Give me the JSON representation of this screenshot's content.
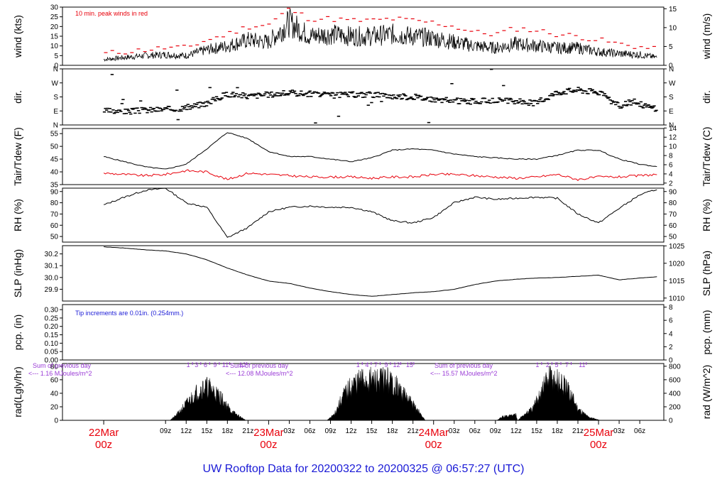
{
  "footer": {
    "title": "UW Rooftop Data for 20200322  to  20200325 @ 06:57:27  (UTC)"
  },
  "colors": {
    "peak": "#e8000b",
    "dew": "#e8000b",
    "note_red": "#e8000b",
    "note_blue": "#1a1ad6",
    "note_purple": "#9a3bd6",
    "day_label": "#e8000b",
    "footer": "#1a1ad6",
    "trace": "#000000"
  },
  "chart_data": [
    {
      "type": "line",
      "id": "wind",
      "ylabel": "wind (kts)",
      "ylabel_right": "wind (m/s)",
      "ylim": [
        0,
        30
      ],
      "yticks": [
        "0",
        "5",
        "10",
        "15",
        "20",
        "25",
        "30"
      ],
      "yticks_right": [
        "0",
        "5",
        "10",
        "15"
      ],
      "annotation": "10 min. peak winds in red",
      "x_hours": [
        0,
        3,
        6,
        9,
        12,
        15,
        18,
        21,
        24,
        27,
        30,
        33,
        36,
        39,
        42,
        45,
        48,
        51,
        54,
        57,
        60,
        63,
        66,
        69,
        72,
        75,
        78,
        80.5
      ],
      "series": [
        {
          "name": "",
          "role": "wind",
          "y": [
            3,
            4,
            5,
            5.5,
            5,
            8,
            10,
            13,
            12,
            22,
            15,
            16,
            15,
            15,
            16,
            15,
            14,
            12,
            10,
            9,
            11,
            10,
            9,
            9,
            7,
            6,
            5.5,
            4
          ]
        },
        {
          "name": "",
          "role": "peak",
          "y": [
            6,
            7,
            8,
            9,
            9,
            13,
            16,
            20,
            21,
            29,
            24,
            24,
            23,
            23,
            24,
            23,
            22,
            20,
            17,
            16,
            19,
            18,
            16,
            15,
            13,
            11,
            9.5,
            8
          ]
        }
      ]
    },
    {
      "type": "scatter",
      "id": "dir",
      "ylabel": "dir.",
      "ylabel_right": "dir.",
      "ylim": [
        0,
        360
      ],
      "yticks": [
        "N",
        "E",
        "S",
        "W",
        "N"
      ],
      "x_hours": [
        0,
        3,
        6,
        9,
        12,
        15,
        18,
        21,
        24,
        27,
        30,
        33,
        36,
        39,
        42,
        45,
        48,
        51,
        54,
        57,
        60,
        63,
        66,
        69,
        72,
        75,
        77,
        80.5
      ],
      "series": [
        {
          "name": "",
          "y": [
            90,
            85,
            95,
            100,
            110,
            140,
            200,
            185,
            195,
            205,
            200,
            190,
            195,
            195,
            185,
            180,
            165,
            155,
            150,
            160,
            150,
            140,
            210,
            225,
            210,
            120,
            150,
            100
          ]
        }
      ]
    },
    {
      "type": "line",
      "id": "temp",
      "ylabel": "Tair/Tdew (F)",
      "ylabel_right": "Tair/Tdew (C)",
      "ylim": [
        35,
        57
      ],
      "yticks": [
        "35",
        "40",
        "45",
        "50",
        "55"
      ],
      "yticks_right": [
        "2",
        "4",
        "6",
        "8",
        "10",
        "12",
        "14"
      ],
      "x_hours": [
        0,
        3,
        6,
        9,
        12,
        15,
        18,
        21,
        24,
        27,
        30,
        33,
        36,
        39,
        42,
        45,
        48,
        51,
        54,
        57,
        60,
        63,
        66,
        69,
        72,
        75,
        78,
        80.5
      ],
      "series": [
        {
          "name": "",
          "role": "air",
          "y": [
            46,
            44,
            42,
            41,
            43,
            49,
            55.5,
            53,
            48,
            46,
            46,
            45,
            44,
            45.5,
            48.5,
            49,
            48.5,
            47,
            46,
            45.5,
            45,
            45,
            46.5,
            48.5,
            48.5,
            45,
            43,
            42
          ]
        },
        {
          "name": "",
          "role": "dew",
          "y": [
            39.5,
            39,
            38.5,
            39,
            40.5,
            40,
            37,
            39.5,
            39,
            38.5,
            38,
            38,
            38,
            37.5,
            38,
            38,
            39,
            39,
            38.5,
            38,
            37.5,
            38,
            39,
            37,
            38,
            38,
            38.5,
            39
          ]
        }
      ]
    },
    {
      "type": "line",
      "id": "rh",
      "ylabel": "RH (%)",
      "ylabel_right": "RH (%)",
      "ylim": [
        45,
        93
      ],
      "yticks": [
        "50",
        "60",
        "70",
        "80",
        "90"
      ],
      "yticks_right": [
        "50",
        "60",
        "70",
        "80",
        "90"
      ],
      "x_hours": [
        0,
        3,
        6,
        9,
        12,
        15,
        18,
        21,
        24,
        27,
        30,
        33,
        36,
        39,
        42,
        45,
        48,
        51,
        54,
        57,
        60,
        63,
        66,
        69,
        72,
        75,
        78,
        80.5
      ],
      "series": [
        {
          "name": "",
          "y": [
            78,
            85,
            91,
            93,
            80,
            76,
            49,
            58,
            72,
            76,
            77,
            76,
            76,
            72,
            64,
            62,
            67,
            80,
            85,
            83,
            84,
            85,
            84,
            70,
            62,
            75,
            87,
            92
          ]
        }
      ]
    },
    {
      "type": "line",
      "id": "slp",
      "ylabel": "SLP (inHg)",
      "ylabel_right": "SLP (hPa)",
      "ylim": [
        29.8,
        30.27
      ],
      "yticks": [
        "29.9",
        "30.0",
        "30.1",
        "30.2"
      ],
      "yticks_right": [
        "1010",
        "1015",
        "1020",
        "1025"
      ],
      "x_hours": [
        0,
        3,
        6,
        9,
        12,
        15,
        18,
        21,
        24,
        27,
        30,
        33,
        36,
        39,
        42,
        45,
        48,
        51,
        54,
        57,
        60,
        63,
        66,
        69,
        72,
        75,
        78,
        80.5
      ],
      "series": [
        {
          "name": "",
          "y": [
            30.26,
            30.25,
            30.235,
            30.225,
            30.2,
            30.15,
            30.08,
            30.02,
            29.97,
            29.95,
            29.91,
            29.88,
            29.855,
            29.84,
            29.855,
            29.87,
            29.88,
            29.9,
            29.94,
            29.97,
            29.985,
            29.995,
            30.0,
            30.01,
            30.02,
            29.98,
            29.995,
            30.005
          ]
        }
      ]
    },
    {
      "type": "line",
      "id": "pcp",
      "ylabel": "pcp. (in)",
      "ylabel_right": "pcp. (mm)",
      "ylim": [
        0,
        0.33
      ],
      "yticks": [
        "0.00",
        "0.05",
        "0.10",
        "0.15",
        "0.20",
        "0.25",
        "0.30"
      ],
      "yticks_right": [
        "0",
        "2",
        "4",
        "6",
        "8"
      ],
      "annotation": "Tip increments are 0.01in. (0.254mm.)",
      "x_hours": [
        0,
        80.5
      ],
      "series": [
        {
          "name": "",
          "y": [
            0,
            0
          ]
        }
      ]
    },
    {
      "type": "area",
      "id": "rad",
      "ylabel": "rad(Lgly/hr)",
      "ylabel_right": "rad (W/m^2)",
      "ylim": [
        0,
        84
      ],
      "yticks": [
        "0",
        "20",
        "40",
        "60",
        "80"
      ],
      "yticks_right": [
        "0",
        "200",
        "400",
        "600",
        "800"
      ],
      "annotations": [
        {
          "line1": "Sum of previous day",
          "line2": "<--- 1.16 MJoules/m^2"
        },
        {
          "line1": "Sum of previous day",
          "line2": "<--- 12.08 MJoules/m^2"
        },
        {
          "line1": "Sum of previous day",
          "line2": "<--- 15.57 MJoules/m^2"
        }
      ],
      "hour_marks": [
        {
          "x": 12.3,
          "label": "1"
        },
        {
          "x": 13.5,
          "label": "3"
        },
        {
          "x": 14.8,
          "label": "6"
        },
        {
          "x": 16.2,
          "label": "9"
        },
        {
          "x": 17.7,
          "label": "11"
        },
        {
          "x": 20.2,
          "label": "12"
        },
        {
          "x": 37.0,
          "label": "1"
        },
        {
          "x": 38.3,
          "label": "4"
        },
        {
          "x": 39.6,
          "label": "7"
        },
        {
          "x": 41.1,
          "label": "9"
        },
        {
          "x": 42.6,
          "label": "12"
        },
        {
          "x": 44.5,
          "label": "15"
        },
        {
          "x": 63.1,
          "label": "1"
        },
        {
          "x": 64.6,
          "label": "2"
        },
        {
          "x": 65.9,
          "label": "5"
        },
        {
          "x": 67.4,
          "label": "7"
        },
        {
          "x": 69.6,
          "label": "11"
        }
      ],
      "x_hours": [
        9.6,
        10.5,
        12,
        13.5,
        14.5,
        15.5,
        17,
        18.5,
        20,
        20.7,
        32.5,
        33.5,
        35,
        36.5,
        38,
        39.5,
        41,
        42.5,
        44,
        45.5,
        46.8,
        57.2,
        58,
        60,
        60.2,
        61,
        62.5,
        64,
        65,
        66,
        67,
        68,
        69,
        70.5,
        72.3
      ],
      "series": [
        {
          "name": "",
          "y": [
            0,
            8,
            28,
            48,
            58,
            56,
            40,
            16,
            5,
            0,
            0,
            10,
            45,
            64,
            70,
            68,
            72,
            60,
            40,
            20,
            0,
            0,
            6,
            10,
            0,
            8,
            20,
            60,
            75,
            68,
            58,
            45,
            20,
            6,
            0
          ]
        }
      ]
    }
  ],
  "x_axis": {
    "tick_labels": [
      "09z",
      "12z",
      "15z",
      "18z",
      "21z",
      "03z",
      "06z",
      "09z",
      "12z",
      "15z",
      "18z",
      "21z",
      "03z",
      "06z",
      "09z",
      "12z",
      "15z",
      "18z",
      "21z",
      "03z",
      "06z"
    ],
    "tick_hours": [
      9,
      12,
      15,
      18,
      21,
      27,
      30,
      33,
      36,
      39,
      42,
      45,
      51,
      54,
      57,
      60,
      63,
      66,
      69,
      75,
      78
    ],
    "day_labels": [
      {
        "date": "22Mar",
        "hour": "00z",
        "x_hour": 0
      },
      {
        "date": "23Mar",
        "hour": "00z",
        "x_hour": 24
      },
      {
        "date": "24Mar",
        "hour": "00z",
        "x_hour": 48
      },
      {
        "date": "25Mar",
        "hour": "00z",
        "x_hour": 72
      }
    ]
  }
}
